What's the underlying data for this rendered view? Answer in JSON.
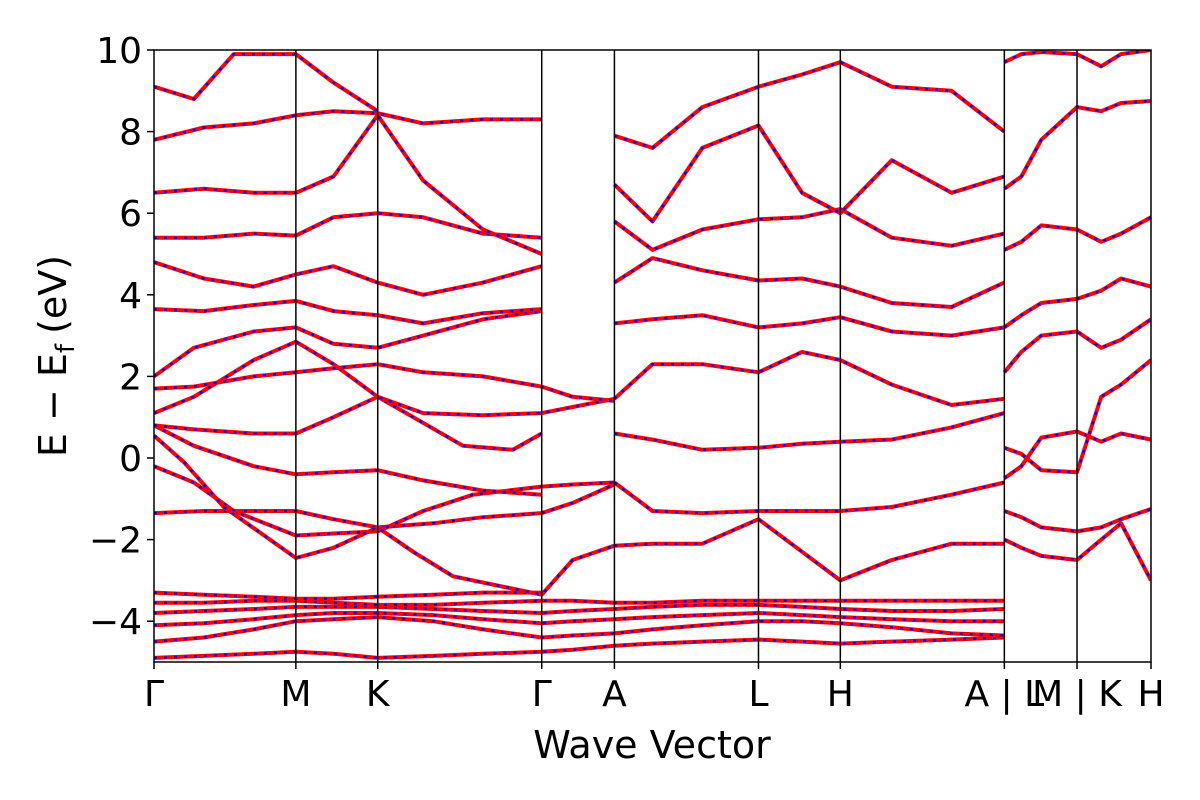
{
  "chart_data": {
    "type": "line",
    "xlabel": "Wave Vector",
    "ylabel": "E − E",
    "ylabel_sub": "f",
    "ylabel_unit": "(eV)",
    "ylim": [
      -5,
      10
    ],
    "yticks": [
      -4,
      -2,
      0,
      2,
      4,
      6,
      8,
      10
    ],
    "ytick_labels": [
      "−4",
      "−2",
      "0",
      "2",
      "4",
      "6",
      "8",
      "10"
    ],
    "kpath_ticks": [
      {
        "label": "Γ",
        "k": 0.0
      },
      {
        "label": "M",
        "k": 0.1423
      },
      {
        "label": "K",
        "k": 0.2244
      },
      {
        "label": "Γ",
        "k": 0.3889
      },
      {
        "label": "A",
        "k": 0.4618
      },
      {
        "label": "L",
        "k": 0.6063
      },
      {
        "label": "H",
        "k": 0.6884
      },
      {
        "label": "A | L",
        "k": 0.8529
      },
      {
        "label": "M | K",
        "k": 0.9258
      },
      {
        "label": "H",
        "k": 1.0
      }
    ],
    "segment_boundaries": [
      0.0,
      0.1423,
      0.2244,
      0.3889,
      0.4618,
      0.6063,
      0.6884,
      0.8529,
      0.9258,
      1.0
    ],
    "series_colors": {
      "band": "#ff0000",
      "overlay": "#0000ff"
    },
    "bands": [
      {
        "k": [
          0.0,
          0.05,
          0.1,
          0.1423,
          0.18,
          0.2244,
          0.28,
          0.33,
          0.3889,
          0.42,
          0.4618,
          0.5,
          0.55,
          0.6063,
          0.65,
          0.6884,
          0.74,
          0.8,
          0.8529
        ],
        "e": [
          -4.9,
          -4.85,
          -4.8,
          -4.75,
          -4.8,
          -4.9,
          -4.85,
          -4.8,
          -4.75,
          -4.7,
          -4.6,
          -4.55,
          -4.5,
          -4.45,
          -4.5,
          -4.55,
          -4.5,
          -4.45,
          -4.4
        ]
      },
      {
        "k": [
          0.0,
          0.05,
          0.1,
          0.1423,
          0.18,
          0.2244,
          0.28,
          0.33,
          0.3889,
          0.42,
          0.4618,
          0.5,
          0.55,
          0.6063,
          0.65,
          0.6884,
          0.74,
          0.8,
          0.8529
        ],
        "e": [
          -4.5,
          -4.4,
          -4.2,
          -4.0,
          -3.95,
          -3.9,
          -4.0,
          -4.2,
          -4.4,
          -4.35,
          -4.3,
          -4.2,
          -4.1,
          -4.0,
          -4.0,
          -4.05,
          -4.15,
          -4.3,
          -4.35
        ]
      },
      {
        "k": [
          0.0,
          0.05,
          0.1,
          0.1423,
          0.18,
          0.2244,
          0.28,
          0.33,
          0.3889,
          0.42,
          0.4618,
          0.5,
          0.55,
          0.6063,
          0.65,
          0.6884,
          0.74,
          0.8,
          0.8529
        ],
        "e": [
          -4.1,
          -4.05,
          -3.95,
          -3.85,
          -3.8,
          -3.8,
          -3.85,
          -3.95,
          -4.05,
          -4.0,
          -3.95,
          -3.9,
          -3.85,
          -3.8,
          -3.85,
          -3.9,
          -3.95,
          -4.0,
          -4.0
        ]
      },
      {
        "k": [
          0.0,
          0.05,
          0.1,
          0.1423,
          0.18,
          0.2244,
          0.28,
          0.33,
          0.3889,
          0.42,
          0.4618,
          0.5,
          0.55,
          0.6063,
          0.65,
          0.6884,
          0.74,
          0.8,
          0.8529
        ],
        "e": [
          -3.8,
          -3.75,
          -3.7,
          -3.65,
          -3.65,
          -3.65,
          -3.7,
          -3.75,
          -3.8,
          -3.75,
          -3.7,
          -3.65,
          -3.6,
          -3.6,
          -3.65,
          -3.7,
          -3.75,
          -3.75,
          -3.7
        ]
      },
      {
        "k": [
          0.0,
          0.05,
          0.1,
          0.1423,
          0.18,
          0.2244,
          0.28,
          0.33,
          0.3889,
          0.42,
          0.4618,
          0.5,
          0.55,
          0.6063,
          0.65,
          0.6884,
          0.74,
          0.8,
          0.8529
        ],
        "e": [
          -3.55,
          -3.55,
          -3.5,
          -3.5,
          -3.55,
          -3.6,
          -3.6,
          -3.55,
          -3.5,
          -3.5,
          -3.55,
          -3.55,
          -3.5,
          -3.5,
          -3.5,
          -3.5,
          -3.5,
          -3.5,
          -3.5
        ]
      },
      {
        "k": [
          0.0,
          0.05,
          0.1,
          0.1423,
          0.18,
          0.2244,
          0.28,
          0.33,
          0.3889
        ],
        "e": [
          -3.3,
          -3.35,
          -3.4,
          -3.45,
          -3.45,
          -3.4,
          -3.35,
          -3.3,
          -3.3
        ]
      },
      {
        "k": [
          0.0,
          0.05,
          0.1,
          0.1423,
          0.18,
          0.2244,
          0.28,
          0.33,
          0.3889,
          0.42,
          0.4618
        ],
        "e": [
          -1.35,
          -1.3,
          -1.3,
          -1.3,
          -1.5,
          -1.7,
          -1.6,
          -1.45,
          -1.35,
          -1.1,
          -0.65
        ]
      },
      {
        "k": [
          0.0,
          0.04,
          0.08,
          0.1423,
          0.18,
          0.2244,
          0.27,
          0.32,
          0.3889,
          0.42,
          0.4618
        ],
        "e": [
          -0.2,
          -0.6,
          -1.3,
          -1.9,
          -1.85,
          -1.8,
          -1.3,
          -0.9,
          -0.7,
          -0.65,
          -0.6
        ]
      },
      {
        "k": [
          0.0,
          0.03,
          0.07,
          0.1423,
          0.18,
          0.2244,
          0.26,
          0.3,
          0.3889,
          0.42,
          0.4618
        ],
        "e": [
          0.55,
          -0.1,
          -1.2,
          -2.45,
          -2.2,
          -1.7,
          -2.3,
          -2.9,
          -3.35,
          -2.5,
          -2.15
        ]
      },
      {
        "k": [
          0.0,
          0.04,
          0.1,
          0.1423,
          0.18,
          0.2244,
          0.27,
          0.33,
          0.3889
        ],
        "e": [
          0.8,
          0.3,
          -0.2,
          -0.4,
          -0.35,
          -0.3,
          -0.55,
          -0.8,
          -0.9
        ]
      },
      {
        "k": [
          0.0,
          0.04,
          0.1,
          0.1423,
          0.18,
          0.2244,
          0.26,
          0.31,
          0.36,
          0.3889
        ],
        "e": [
          0.8,
          0.7,
          0.6,
          0.6,
          1.0,
          1.5,
          1.0,
          0.3,
          0.2,
          0.6
        ]
      },
      {
        "k": [
          0.0,
          0.04,
          0.1,
          0.1423,
          0.18,
          0.2244,
          0.27,
          0.33,
          0.3889,
          0.42,
          0.4618
        ],
        "e": [
          1.1,
          1.5,
          2.4,
          2.85,
          2.3,
          1.5,
          1.1,
          1.05,
          1.1,
          1.25,
          1.45
        ]
      },
      {
        "k": [
          0.0,
          0.04,
          0.1,
          0.1423,
          0.18,
          0.2244,
          0.27,
          0.33,
          0.3889,
          0.42,
          0.4618
        ],
        "e": [
          1.7,
          1.75,
          2.0,
          2.1,
          2.2,
          2.3,
          2.1,
          2.0,
          1.75,
          1.5,
          1.4
        ]
      },
      {
        "k": [
          0.0,
          0.04,
          0.1,
          0.1423,
          0.18,
          0.2244,
          0.27,
          0.33,
          0.3889
        ],
        "e": [
          2.0,
          2.7,
          3.1,
          3.2,
          2.8,
          2.7,
          3.0,
          3.4,
          3.6
        ]
      },
      {
        "k": [
          0.0,
          0.05,
          0.1,
          0.1423,
          0.18,
          0.2244,
          0.27,
          0.33,
          0.3889
        ],
        "e": [
          3.65,
          3.6,
          3.75,
          3.85,
          3.6,
          3.5,
          3.3,
          3.55,
          3.65
        ]
      },
      {
        "k": [
          0.0,
          0.05,
          0.1,
          0.1423,
          0.18,
          0.2244,
          0.27,
          0.33,
          0.3889
        ],
        "e": [
          4.8,
          4.4,
          4.2,
          4.5,
          4.7,
          4.3,
          4.0,
          4.3,
          4.7
        ]
      },
      {
        "k": [
          0.0,
          0.05,
          0.1,
          0.1423,
          0.18,
          0.2244,
          0.27,
          0.33,
          0.3889
        ],
        "e": [
          5.4,
          5.4,
          5.5,
          5.45,
          5.9,
          6.0,
          5.9,
          5.5,
          5.4
        ]
      },
      {
        "k": [
          0.0,
          0.05,
          0.1,
          0.1423,
          0.18,
          0.2244,
          0.27,
          0.33,
          0.3889
        ],
        "e": [
          6.5,
          6.6,
          6.5,
          6.5,
          6.9,
          8.4,
          6.8,
          5.6,
          5.0
        ]
      },
      {
        "k": [
          0.0,
          0.05,
          0.1,
          0.1423,
          0.18,
          0.2244,
          0.27,
          0.33,
          0.3889
        ],
        "e": [
          7.8,
          8.1,
          8.2,
          8.4,
          8.5,
          8.45,
          8.2,
          8.3,
          8.3
        ]
      },
      {
        "k": [
          0.0,
          0.04,
          0.08,
          0.1423,
          0.18,
          0.2244
        ],
        "e": [
          9.1,
          8.8,
          9.9,
          9.9,
          9.2,
          8.5
        ]
      },
      {
        "k": [
          0.4618,
          0.5,
          0.55,
          0.6063,
          0.65,
          0.6884,
          0.74,
          0.8,
          0.8529
        ],
        "e": [
          0.6,
          0.45,
          0.2,
          0.25,
          0.35,
          0.4,
          0.45,
          0.75,
          1.1
        ]
      },
      {
        "k": [
          0.4618,
          0.5,
          0.55,
          0.6063,
          0.65,
          0.6884,
          0.74,
          0.8,
          0.8529
        ],
        "e": [
          1.45,
          2.3,
          2.3,
          2.1,
          2.6,
          2.4,
          1.8,
          1.3,
          1.45
        ]
      },
      {
        "k": [
          0.4618,
          0.5,
          0.55,
          0.6063,
          0.65,
          0.6884,
          0.74,
          0.8,
          0.8529
        ],
        "e": [
          -0.6,
          -1.3,
          -1.35,
          -1.3,
          -1.3,
          -1.3,
          -1.2,
          -0.9,
          -0.6
        ]
      },
      {
        "k": [
          0.4618,
          0.5,
          0.55,
          0.6063,
          0.65,
          0.6884,
          0.74,
          0.8,
          0.8529
        ],
        "e": [
          -2.15,
          -2.1,
          -2.1,
          -1.5,
          -2.3,
          -3.0,
          -2.5,
          -2.1,
          -2.1
        ]
      },
      {
        "k": [
          0.4618,
          0.5,
          0.55,
          0.6063,
          0.65,
          0.6884,
          0.74,
          0.8,
          0.8529
        ],
        "e": [
          3.3,
          3.4,
          3.5,
          3.2,
          3.3,
          3.45,
          3.1,
          3.0,
          3.2
        ]
      },
      {
        "k": [
          0.4618,
          0.5,
          0.55,
          0.6063,
          0.65,
          0.6884,
          0.74,
          0.8,
          0.8529
        ],
        "e": [
          4.3,
          4.9,
          4.6,
          4.35,
          4.4,
          4.2,
          3.8,
          3.7,
          4.3
        ]
      },
      {
        "k": [
          0.4618,
          0.5,
          0.55,
          0.6063,
          0.65,
          0.6884,
          0.74,
          0.8,
          0.8529
        ],
        "e": [
          5.8,
          5.1,
          5.6,
          5.85,
          5.9,
          6.1,
          5.4,
          5.2,
          5.5
        ]
      },
      {
        "k": [
          0.4618,
          0.5,
          0.55,
          0.6063,
          0.65,
          0.6884,
          0.74,
          0.8,
          0.8529
        ],
        "e": [
          7.9,
          7.6,
          8.6,
          9.1,
          9.4,
          9.7,
          9.1,
          9.0,
          8.0
        ]
      },
      {
        "k": [
          0.4618,
          0.5,
          0.55,
          0.6063,
          0.65,
          0.6884,
          0.74,
          0.8,
          0.8529
        ],
        "e": [
          6.7,
          5.8,
          7.6,
          8.15,
          6.5,
          6.0,
          7.3,
          6.5,
          6.9
        ]
      },
      {
        "k": [
          0.8529,
          0.87,
          0.89,
          0.9258,
          0.95,
          0.97,
          1.0
        ],
        "e": [
          -0.5,
          -0.2,
          0.5,
          0.65,
          0.4,
          0.6,
          0.45
        ]
      },
      {
        "k": [
          0.8529,
          0.87,
          0.89,
          0.9258,
          0.95,
          0.97,
          1.0
        ],
        "e": [
          0.25,
          0.1,
          -0.3,
          -0.35,
          1.5,
          1.8,
          2.4
        ]
      },
      {
        "k": [
          0.8529,
          0.87,
          0.89,
          0.9258,
          0.95,
          0.97,
          1.0
        ],
        "e": [
          -1.3,
          -1.45,
          -1.7,
          -1.8,
          -1.7,
          -1.5,
          -1.25
        ]
      },
      {
        "k": [
          0.8529,
          0.87,
          0.89,
          0.9258,
          0.95,
          0.97,
          1.0
        ],
        "e": [
          -2.0,
          -2.2,
          -2.4,
          -2.5,
          -2.0,
          -1.6,
          -3.0
        ]
      },
      {
        "k": [
          0.8529,
          0.87,
          0.89,
          0.9258,
          0.95,
          0.97,
          1.0
        ],
        "e": [
          2.1,
          2.6,
          3.0,
          3.1,
          2.7,
          2.9,
          3.4
        ]
      },
      {
        "k": [
          0.8529,
          0.87,
          0.89,
          0.9258,
          0.95,
          0.97,
          1.0
        ],
        "e": [
          3.2,
          3.5,
          3.8,
          3.9,
          4.1,
          4.4,
          4.2
        ]
      },
      {
        "k": [
          0.8529,
          0.87,
          0.89,
          0.9258,
          0.95,
          0.97,
          1.0
        ],
        "e": [
          5.1,
          5.3,
          5.7,
          5.6,
          5.3,
          5.5,
          5.9
        ]
      },
      {
        "k": [
          0.8529,
          0.87,
          0.89,
          0.9258,
          0.95,
          0.97,
          1.0
        ],
        "e": [
          6.6,
          6.9,
          7.8,
          8.6,
          8.5,
          8.7,
          8.75
        ]
      },
      {
        "k": [
          0.8529,
          0.87,
          0.89,
          0.9258,
          0.95,
          0.97,
          1.0
        ],
        "e": [
          9.7,
          9.9,
          9.95,
          9.9,
          9.6,
          9.9,
          10.0
        ]
      }
    ]
  }
}
